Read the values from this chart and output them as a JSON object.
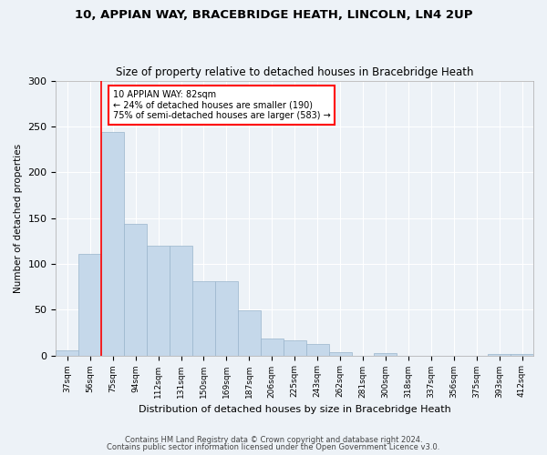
{
  "title": "10, APPIAN WAY, BRACEBRIDGE HEATH, LINCOLN, LN4 2UP",
  "subtitle": "Size of property relative to detached houses in Bracebridge Heath",
  "xlabel": "Distribution of detached houses by size in Bracebridge Heath",
  "ylabel": "Number of detached properties",
  "bar_labels": [
    "37sqm",
    "56sqm",
    "75sqm",
    "94sqm",
    "112sqm",
    "131sqm",
    "150sqm",
    "169sqm",
    "187sqm",
    "206sqm",
    "225sqm",
    "243sqm",
    "262sqm",
    "281sqm",
    "300sqm",
    "318sqm",
    "337sqm",
    "356sqm",
    "375sqm",
    "393sqm",
    "412sqm"
  ],
  "bar_values": [
    6,
    111,
    244,
    144,
    120,
    120,
    81,
    81,
    49,
    18,
    16,
    12,
    4,
    0,
    3,
    0,
    0,
    0,
    0,
    2,
    2
  ],
  "bar_color": "#c5d8ea",
  "bar_edge_color": "#9ab5cc",
  "red_line_x": 2.0,
  "annotation_text": "10 APPIAN WAY: 82sqm\n← 24% of detached houses are smaller (190)\n75% of semi-detached houses are larger (583) →",
  "annotation_box_color": "white",
  "annotation_box_edge_color": "red",
  "red_line_color": "red",
  "ylim": [
    0,
    300
  ],
  "yticks": [
    0,
    50,
    100,
    150,
    200,
    250,
    300
  ],
  "footnote1": "Contains HM Land Registry data © Crown copyright and database right 2024.",
  "footnote2": "Contains public sector information licensed under the Open Government Licence v3.0.",
  "background_color": "#edf2f7",
  "grid_color": "white",
  "title_fontsize": 9.5,
  "subtitle_fontsize": 8.5
}
